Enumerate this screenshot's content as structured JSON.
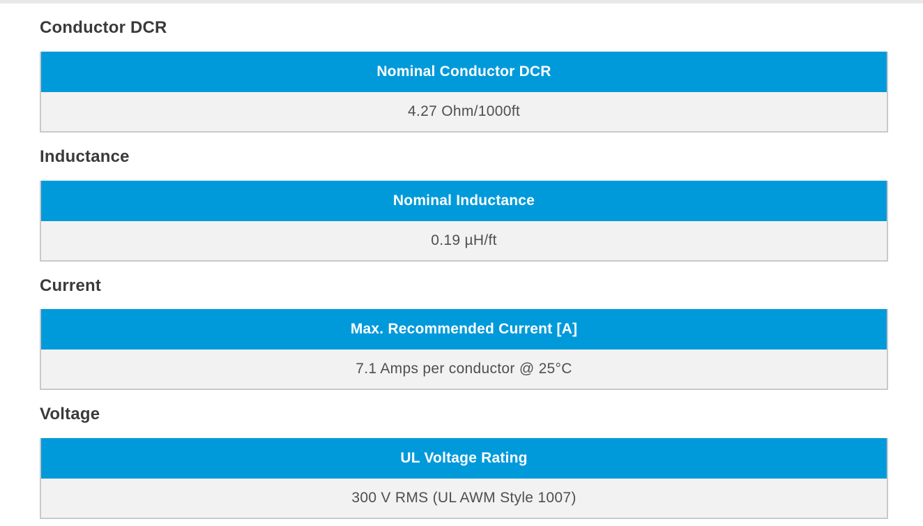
{
  "colors": {
    "header_bg": "#009adb",
    "header_text": "#ffffff",
    "value_bg": "#f2f2f2",
    "value_text": "#4f4f4f",
    "border_color": "#c9c9c9",
    "heading_text": "#3a3a3a",
    "top_strip": "#e8e8e8"
  },
  "sections": [
    {
      "heading": "Conductor DCR",
      "table": {
        "header": "Nominal Conductor DCR",
        "value": "4.27 Ohm/1000ft"
      }
    },
    {
      "heading": "Inductance",
      "table": {
        "header": "Nominal Inductance",
        "value": "0.19 µH/ft"
      }
    },
    {
      "heading": "Current",
      "table": {
        "header": "Max. Recommended Current [A]",
        "value": "7.1 Amps per conductor @ 25°C"
      }
    },
    {
      "heading": "Voltage",
      "table": {
        "header": "UL Voltage Rating",
        "value": "300 V RMS (UL AWM Style 1007)"
      }
    }
  ]
}
